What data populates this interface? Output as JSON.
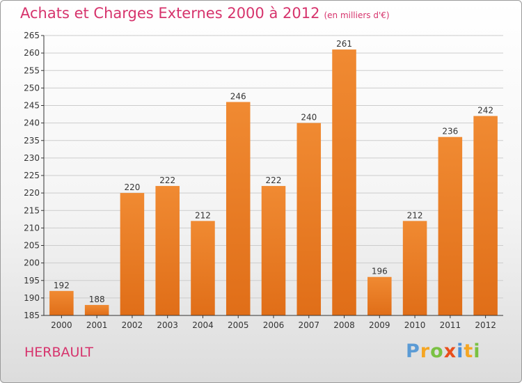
{
  "chart_data": {
    "type": "bar",
    "title": "Achats et Charges Externes 2000 à 2012",
    "subtitle": "(en milliers d'€)",
    "categories": [
      "2000",
      "2001",
      "2002",
      "2003",
      "2004",
      "2005",
      "2006",
      "2007",
      "2008",
      "2009",
      "2010",
      "2011",
      "2012"
    ],
    "values": [
      192,
      188,
      220,
      222,
      212,
      246,
      222,
      240,
      261,
      196,
      212,
      236,
      242
    ],
    "ylim": [
      185,
      265
    ],
    "yticks": [
      185,
      190,
      195,
      200,
      205,
      210,
      215,
      220,
      225,
      230,
      235,
      240,
      245,
      250,
      255,
      260,
      265
    ],
    "grid": true,
    "legend": "none",
    "bar_color": "#f08a32",
    "bar_color_dark": "#e06e18"
  },
  "commune": "HERBAULT",
  "logo": {
    "letters": [
      "P",
      "r",
      "o",
      "x",
      "i",
      "t",
      "i"
    ],
    "colors": [
      "#5b9bd5",
      "#f5a623",
      "#7ac143",
      "#e94e1b",
      "#4a90d9",
      "#f5a623",
      "#7ac143"
    ]
  },
  "colors": {
    "title": "#d6336c",
    "grid": "#cccccc",
    "axis": "#333333"
  }
}
